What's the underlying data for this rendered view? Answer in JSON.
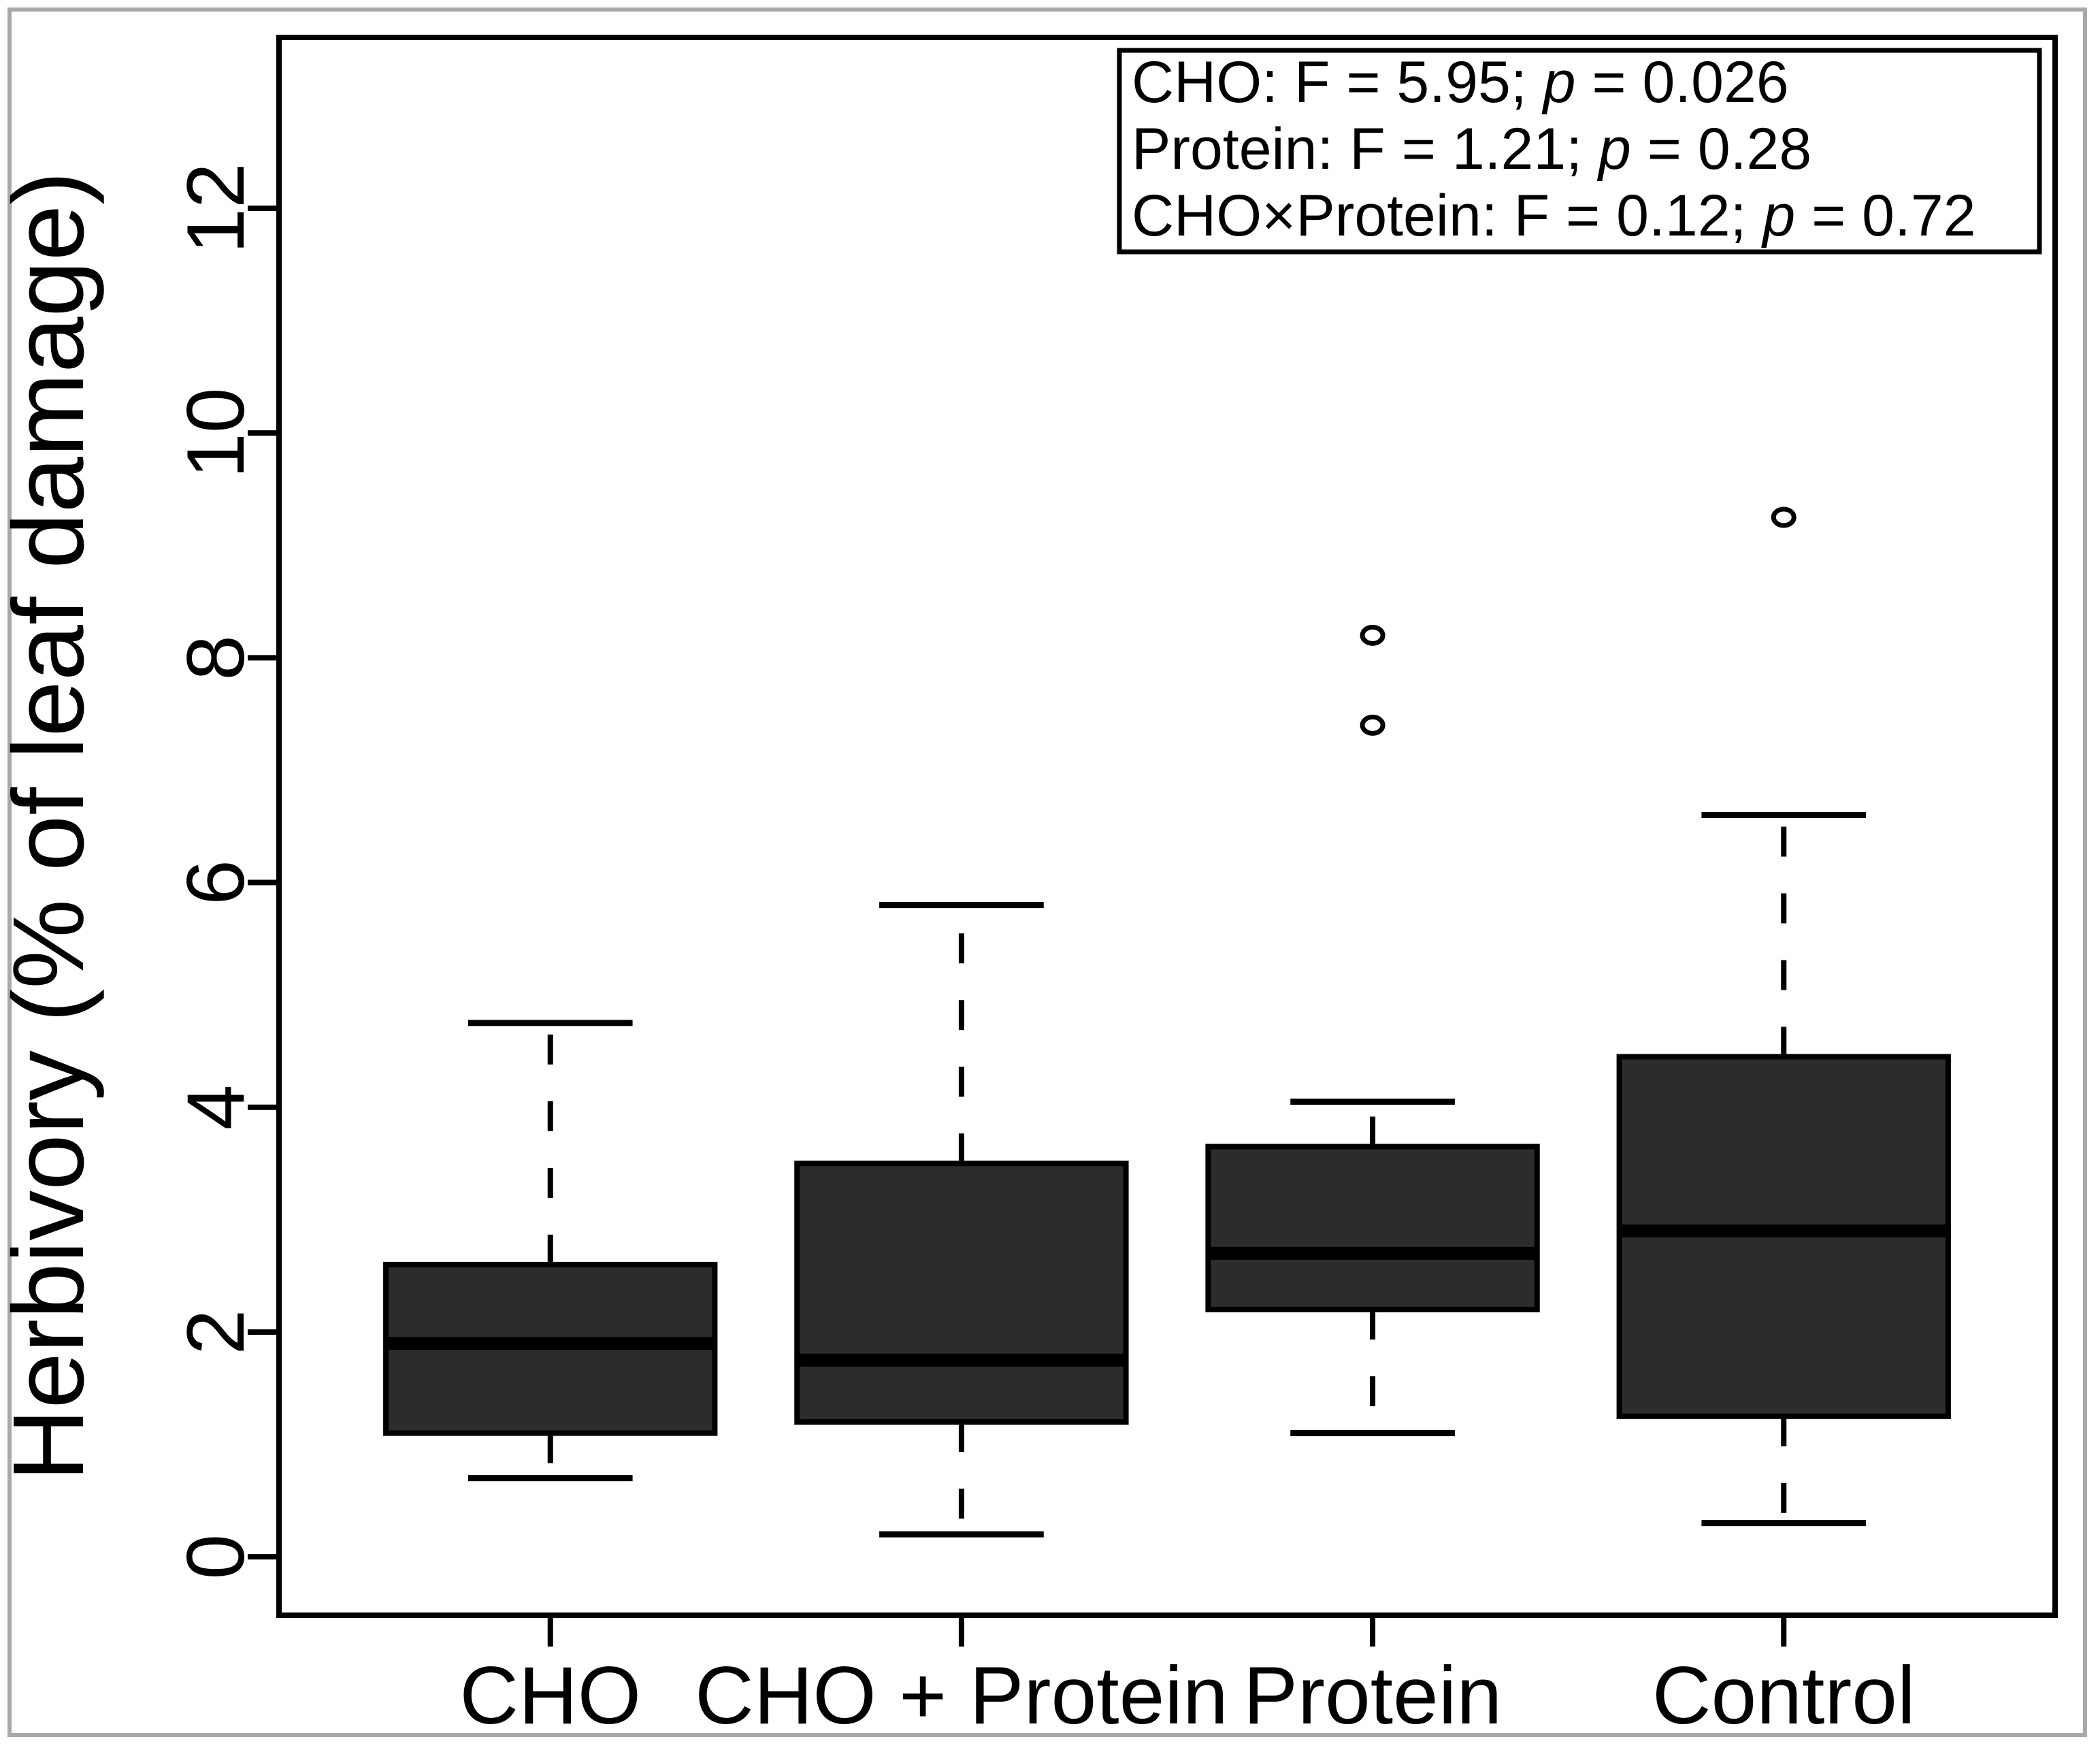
{
  "figure": {
    "background": "#ffffff",
    "frame_color": "#a9a9a9",
    "axis_color": "#000000"
  },
  "chart_data": {
    "type": "boxplot",
    "title": "",
    "xlabel": "",
    "ylabel": "Herbivory (% of leaf damage)",
    "categories": [
      "CHO",
      "CHO + Protein",
      "Protein",
      "Control"
    ],
    "yticks": [
      0,
      2,
      4,
      6,
      8,
      10,
      12
    ],
    "ytick_labels": [
      "0",
      "2",
      "4",
      "6",
      "8",
      "10",
      "12"
    ],
    "ylim": [
      -0.52,
      13.52
    ],
    "xlim": [
      0.34,
      4.66
    ],
    "grid": "off",
    "box_fill": "#2e2c2b",
    "box_width_units": 0.8,
    "staple_width_units": 0.4,
    "series": [
      {
        "name": "CHO",
        "whisker_low": 0.7,
        "q1": 1.1,
        "median": 1.9,
        "q3": 2.6,
        "whisker_high": 4.75,
        "outliers": []
      },
      {
        "name": "CHO + Protein",
        "whisker_low": 0.2,
        "q1": 1.2,
        "median": 1.75,
        "q3": 3.5,
        "whisker_high": 5.8,
        "outliers": []
      },
      {
        "name": "Protein",
        "whisker_low": 1.1,
        "q1": 2.2,
        "median": 2.7,
        "q3": 3.65,
        "whisker_high": 4.05,
        "outliers": [
          7.4,
          8.2
        ]
      },
      {
        "name": "Control",
        "whisker_low": 0.3,
        "q1": 1.25,
        "median": 2.9,
        "q3": 4.45,
        "whisker_high": 6.6,
        "outliers": [
          9.25
        ]
      }
    ],
    "annotation_box": {
      "position": "top-right",
      "lines": [
        {
          "pre": "CHO: F = 5.95; ",
          "pvar": "p",
          "post": " = 0.026"
        },
        {
          "pre": "Protein: F = 1.21; ",
          "pvar": "p",
          "post": " = 0.28"
        },
        {
          "pre": "CHO×Protein: F = 0.12; ",
          "pvar": "p",
          "post": " = 0.72"
        }
      ]
    }
  }
}
